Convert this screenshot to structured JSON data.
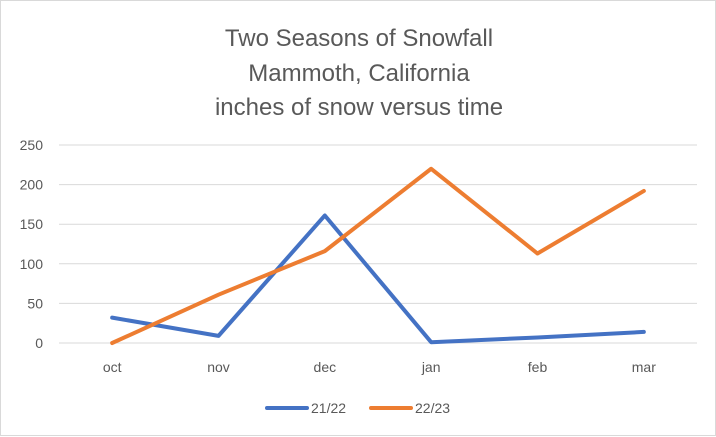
{
  "chart_data": {
    "type": "line",
    "title_lines": [
      "Two Seasons of Snowfall",
      "Mammoth, California",
      "inches of snow versus time"
    ],
    "categories": [
      "oct",
      "nov",
      "dec",
      "jan",
      "feb",
      "mar"
    ],
    "y_ticks": [
      "0",
      "50",
      "100",
      "150",
      "200",
      "250"
    ],
    "ylim": [
      0,
      250
    ],
    "grid": "horizontal",
    "legend_position": "bottom",
    "series": [
      {
        "name": "21/22",
        "color": "#4472C4",
        "values": [
          32,
          9,
          161,
          1,
          7,
          14
        ]
      },
      {
        "name": "22/23",
        "color": "#ED7D31",
        "values": [
          0,
          61,
          116,
          220,
          113,
          192
        ]
      }
    ]
  }
}
